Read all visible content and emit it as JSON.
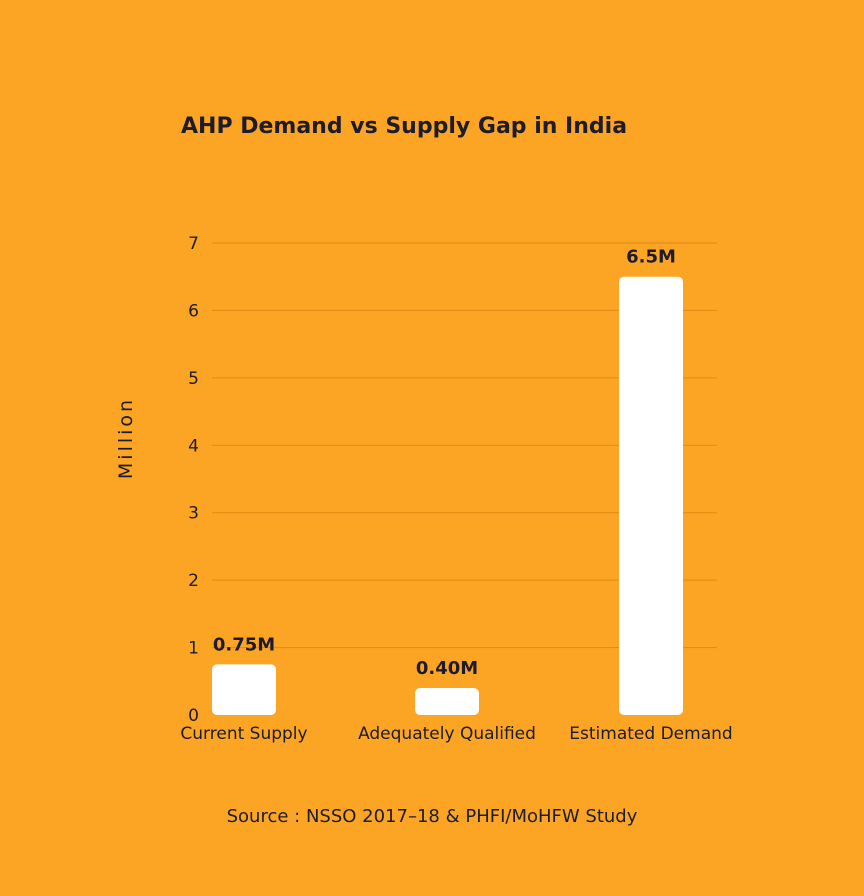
{
  "chart_data": {
    "type": "bar",
    "title": "AHP Demand vs Supply Gap in India",
    "xlabel": "",
    "ylabel": "Million",
    "categories": [
      "Current Supply",
      "Adequately Qualified",
      "Estimated Demand"
    ],
    "values": [
      0.75,
      0.4,
      6.5
    ],
    "data_labels": [
      "0.75M",
      "0.40M",
      "6.5M"
    ],
    "ylim": [
      0,
      7
    ],
    "yticks": [
      0,
      1,
      2,
      3,
      4,
      5,
      6,
      7
    ],
    "grid": true,
    "legend": "none",
    "colors": {
      "background": "#FCA424",
      "bar": "#FFFFFF",
      "grid": "#E08A12",
      "text": "#1C1C2B"
    }
  },
  "source_note": "Source : NSSO 2017–18 & PHFI/MoHFW Study"
}
